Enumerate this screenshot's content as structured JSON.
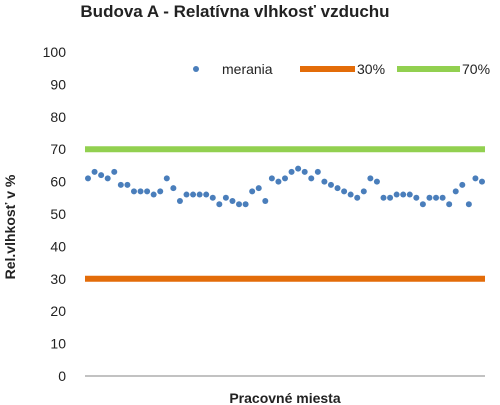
{
  "chart_data": {
    "type": "scatter",
    "title": "Budova A - Relatívna vlhkosť vzduchu",
    "xlabel": "Pracovné miesta",
    "ylabel": "Rel.vlhkosť v %",
    "ylim": [
      0,
      100
    ],
    "yticks": [
      0,
      10,
      20,
      30,
      40,
      50,
      60,
      70,
      80,
      90,
      100
    ],
    "grid": false,
    "legend_position": "top",
    "series": [
      {
        "name": "merania",
        "kind": "scatter",
        "color": "#4a7ebb",
        "values": [
          61,
          63,
          62,
          61,
          63,
          59,
          59,
          57,
          57,
          57,
          56,
          57,
          61,
          58,
          54,
          56,
          56,
          56,
          56,
          55,
          53,
          55,
          54,
          53,
          53,
          57,
          58,
          54,
          61,
          60,
          61,
          63,
          64,
          63,
          61,
          63,
          60,
          59,
          58,
          57,
          56,
          55,
          57,
          61,
          60,
          55,
          55,
          56,
          56,
          56,
          55,
          53,
          55,
          55,
          55,
          53,
          57,
          59,
          53,
          61,
          60
        ]
      },
      {
        "name": "30%",
        "kind": "line",
        "color": "#e36c09",
        "value": 30
      },
      {
        "name": "70%",
        "kind": "line",
        "color": "#92d050",
        "value": 70
      }
    ]
  }
}
